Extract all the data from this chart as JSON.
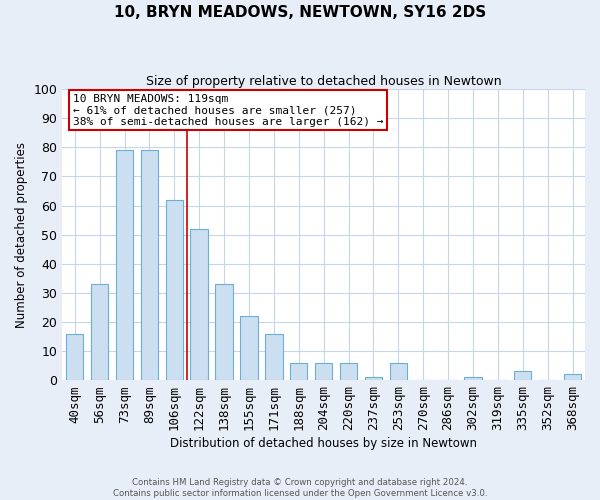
{
  "title": "10, BRYN MEADOWS, NEWTOWN, SY16 2DS",
  "subtitle": "Size of property relative to detached houses in Newtown",
  "xlabel": "Distribution of detached houses by size in Newtown",
  "ylabel": "Number of detached properties",
  "bar_labels": [
    "40sqm",
    "56sqm",
    "73sqm",
    "89sqm",
    "106sqm",
    "122sqm",
    "138sqm",
    "155sqm",
    "171sqm",
    "188sqm",
    "204sqm",
    "220sqm",
    "237sqm",
    "253sqm",
    "270sqm",
    "286sqm",
    "302sqm",
    "319sqm",
    "335sqm",
    "352sqm",
    "368sqm"
  ],
  "bar_values": [
    16,
    33,
    79,
    79,
    62,
    52,
    33,
    22,
    16,
    6,
    6,
    6,
    1,
    6,
    0,
    0,
    1,
    0,
    3,
    0,
    2
  ],
  "bar_color": "#ccdff0",
  "bar_edge_color": "#6aafd4",
  "vline_color": "#cc0000",
  "vline_x": 5.0,
  "ylim": [
    0,
    100
  ],
  "yticks": [
    0,
    10,
    20,
    30,
    40,
    50,
    60,
    70,
    80,
    90,
    100
  ],
  "annotation_text": "10 BRYN MEADOWS: 119sqm\n← 61% of detached houses are smaller (257)\n38% of semi-detached houses are larger (162) →",
  "annotation_box_color": "#ffffff",
  "annotation_box_edge_color": "#cc0000",
  "footer_line1": "Contains HM Land Registry data © Crown copyright and database right 2024.",
  "footer_line2": "Contains public sector information licensed under the Open Government Licence v3.0.",
  "background_color": "#e8eef8",
  "plot_background_color": "#ffffff",
  "grid_color": "#c8d4e8",
  "bar_width": 0.7
}
